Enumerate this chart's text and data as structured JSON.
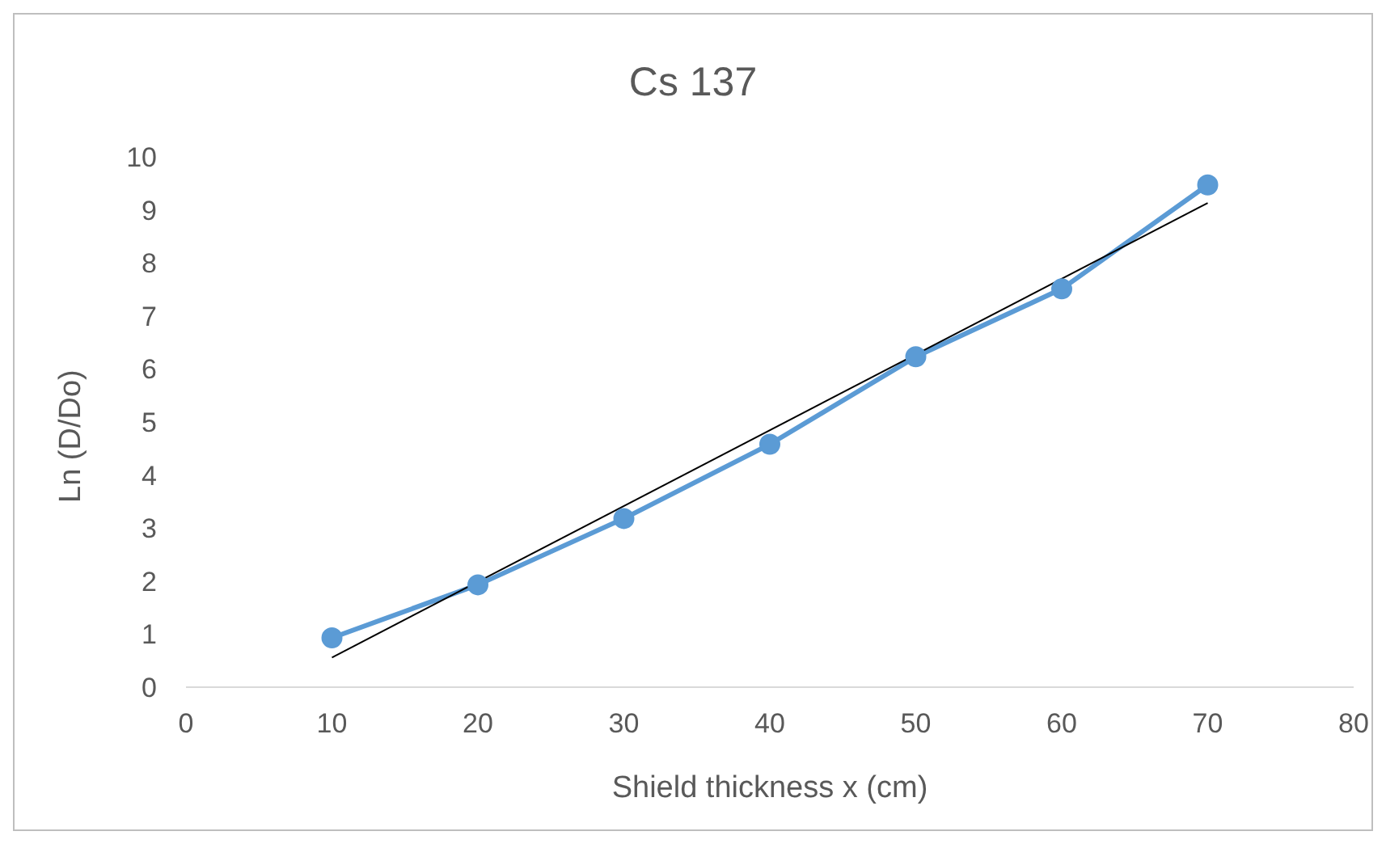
{
  "chart_data": {
    "type": "line",
    "title": "Cs 137",
    "xlabel": "Shield thickness x (cm)",
    "ylabel": "Ln (D/Do)",
    "xlim": [
      0,
      80
    ],
    "xticks": [
      0,
      10,
      20,
      30,
      40,
      50,
      60,
      70,
      80
    ],
    "ylim": [
      0,
      10
    ],
    "yticks": [
      0,
      1,
      2,
      3,
      4,
      5,
      6,
      7,
      8,
      9,
      10
    ],
    "grid": false,
    "marker": "circle",
    "series": [
      {
        "color": "#5b9bd5",
        "x": [
          10,
          20,
          30,
          40,
          50,
          60,
          70
        ],
        "values": [
          0.93,
          1.93,
          3.18,
          4.58,
          6.23,
          7.51,
          9.47
        ]
      },
      {
        "type": "line",
        "color": "#000000",
        "marker": "none",
        "x": [
          10,
          70
        ],
        "values": [
          0.56,
          9.13
        ]
      }
    ]
  }
}
